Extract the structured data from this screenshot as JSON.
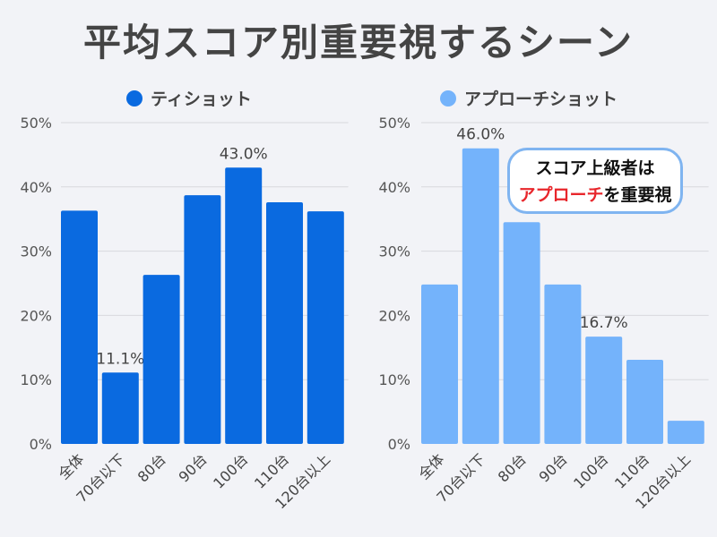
{
  "title": "平均スコア別重要視するシーン",
  "callout": {
    "line1": "スコア上級者は",
    "highlight": "アプローチ",
    "rest": "を重要視"
  },
  "colors": {
    "tee": "#0a6ae0",
    "approach": "#74b3fb",
    "background": "#f2f3f7",
    "highlight": "#e8262b"
  },
  "chart_data": [
    {
      "type": "bar",
      "legend": "ティショット",
      "categories": [
        "全体",
        "70台以下",
        "80台",
        "90台",
        "100台",
        "110台",
        "120台以上"
      ],
      "values": [
        36.3,
        11.1,
        26.3,
        38.7,
        43.0,
        37.6,
        36.2
      ],
      "data_labels": {
        "1": "11.1%",
        "4": "43.0%"
      },
      "yticks": [
        "0%",
        "10%",
        "20%",
        "30%",
        "40%",
        "50%"
      ],
      "ylim": [
        0,
        50
      ],
      "grid": true,
      "legend_placement": "top"
    },
    {
      "type": "bar",
      "legend": "アプローチショット",
      "categories": [
        "全体",
        "70台以下",
        "80台",
        "90台",
        "100台",
        "110台",
        "120台以上"
      ],
      "values": [
        24.8,
        46.0,
        34.5,
        24.8,
        16.7,
        13.1,
        3.6
      ],
      "data_labels": {
        "1": "46.0%",
        "4": "16.7%"
      },
      "yticks": [
        "0%",
        "10%",
        "20%",
        "30%",
        "40%",
        "50%"
      ],
      "ylim": [
        0,
        50
      ],
      "grid": true,
      "legend_placement": "top"
    }
  ]
}
